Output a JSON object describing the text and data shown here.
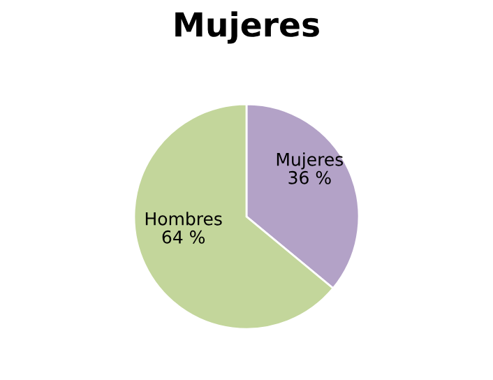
{
  "chart_data": {
    "type": "pie",
    "title": "Mujeres",
    "categories": [
      "Mujeres",
      "Hombres"
    ],
    "values": [
      36,
      64
    ],
    "value_labels": [
      "36 %",
      "64 %"
    ],
    "colors": [
      "#b3a2c7",
      "#c3d69b"
    ],
    "legend": false
  }
}
